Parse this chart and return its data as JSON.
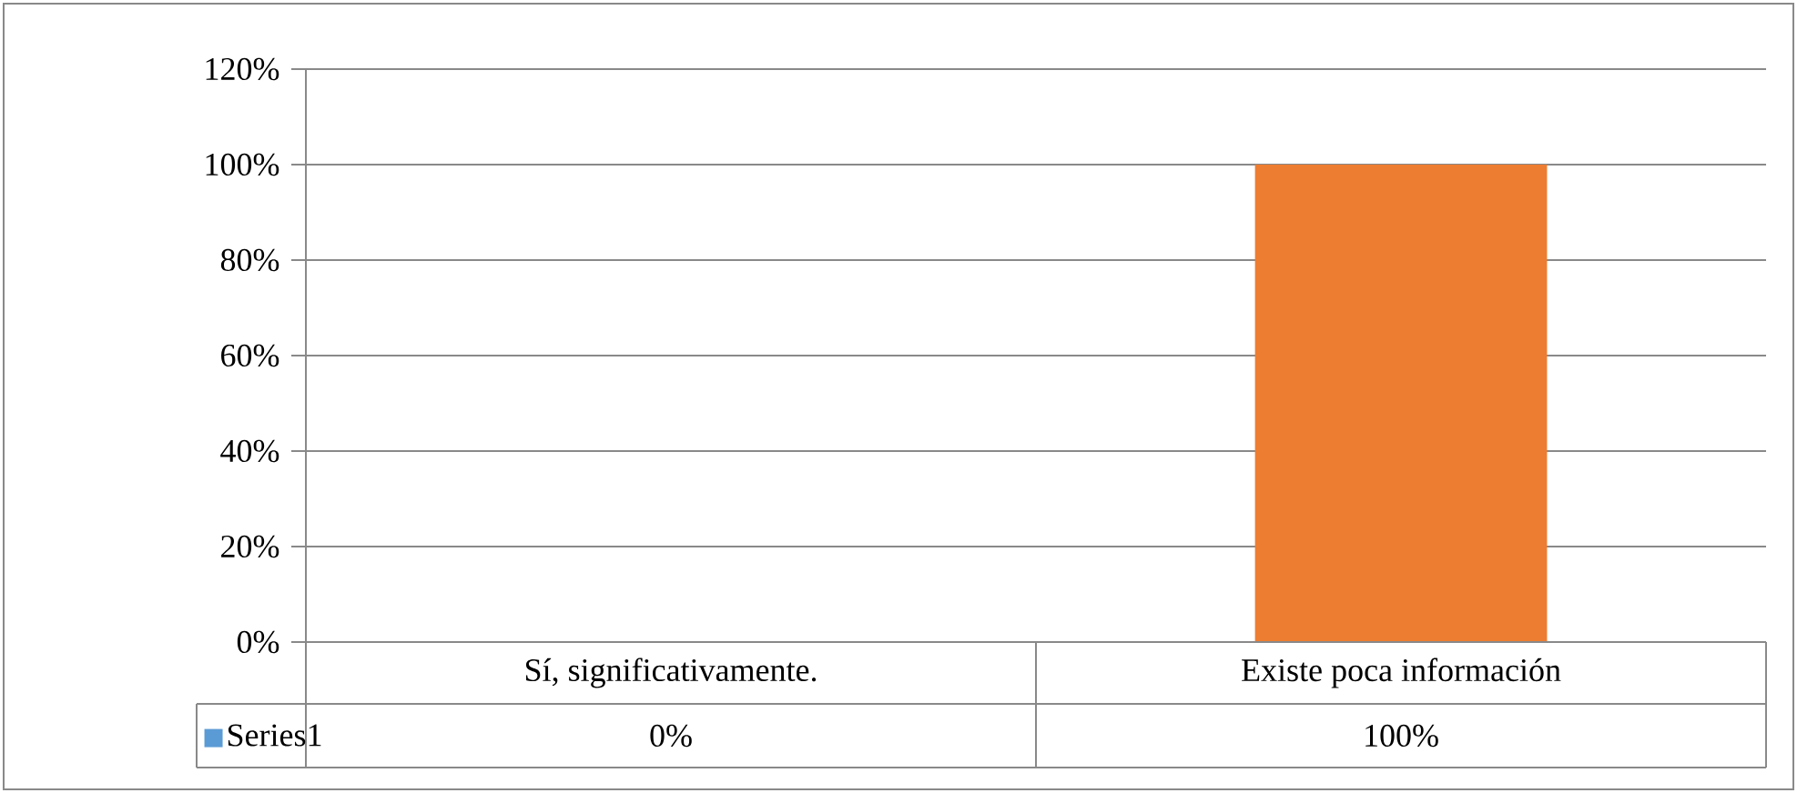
{
  "chart_data": {
    "type": "bar",
    "categories": [
      "Sí, significativamente.",
      "Existe poca información"
    ],
    "series": [
      {
        "name": "Series1",
        "color": "#5b9bd5",
        "colors": [
          "#5b9bd5",
          "#ed7d31"
        ],
        "values": [
          0,
          100
        ],
        "value_labels": [
          "0%",
          "100%"
        ]
      }
    ],
    "ylim": [
      0,
      120
    ],
    "yticks": [
      {
        "value": 0,
        "label": "0%"
      },
      {
        "value": 20,
        "label": "20%"
      },
      {
        "value": 40,
        "label": "40%"
      },
      {
        "value": 60,
        "label": "60%"
      },
      {
        "value": 80,
        "label": "80%"
      },
      {
        "value": 100,
        "label": "100%"
      },
      {
        "value": 120,
        "label": "120%"
      }
    ],
    "grid": "y",
    "legend": "bottom"
  }
}
